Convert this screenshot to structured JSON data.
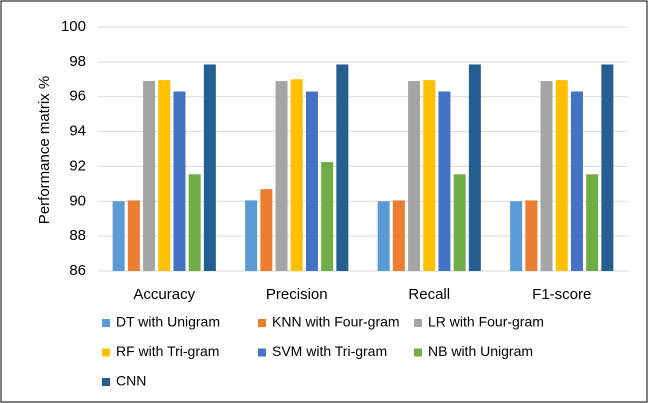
{
  "chart_data": {
    "type": "bar",
    "y_label": "Performance matrix %",
    "categories": [
      "Accuracy",
      "Precision",
      "Recall",
      "F1-score"
    ],
    "series": [
      {
        "name": "DT with Unigram",
        "color": "#5b9bd5",
        "values": [
          90.0,
          90.05,
          90.0,
          90.0
        ]
      },
      {
        "name": "KNN with Four-gram",
        "color": "#ed7d31",
        "values": [
          90.05,
          90.7,
          90.05,
          90.05
        ]
      },
      {
        "name": "LR with Four-gram",
        "color": "#a5a5a5",
        "values": [
          96.9,
          96.9,
          96.9,
          96.9
        ]
      },
      {
        "name": "RF with Tri-gram",
        "color": "#ffc000",
        "values": [
          96.95,
          97.0,
          96.95,
          96.95
        ]
      },
      {
        "name": "SVM with Tri-gram",
        "color": "#4472c4",
        "values": [
          96.3,
          96.3,
          96.3,
          96.3
        ]
      },
      {
        "name": "NB with Unigram",
        "color": "#70ad47",
        "values": [
          91.55,
          92.25,
          91.55,
          91.55
        ]
      },
      {
        "name": "CNN",
        "color": "#255e91",
        "values": [
          97.85,
          97.85,
          97.85,
          97.85
        ]
      }
    ],
    "ylim": [
      86,
      100
    ],
    "yticks": [
      86,
      88,
      90,
      92,
      94,
      96,
      98,
      100
    ],
    "grid": true
  }
}
